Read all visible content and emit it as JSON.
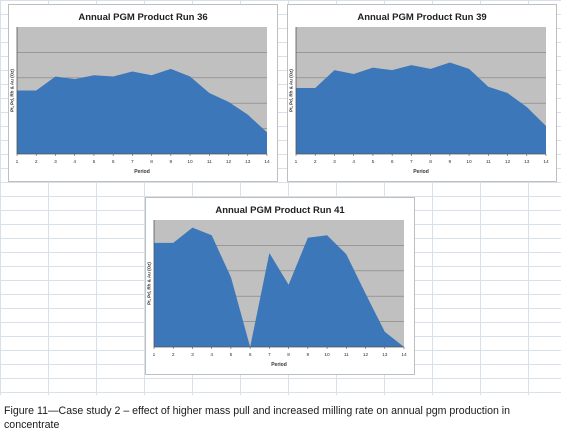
{
  "caption": "Figure 11—Case study 2 – effect of higher mass pull and increased milling rate on annual pgm production in concentrate",
  "colors": {
    "fill": "#3b77b9",
    "plot_bg": "#c0c0c0",
    "grid": "#7f7f7f"
  },
  "chart_data": [
    {
      "type": "area",
      "title": "Annual PGM Product Run 36",
      "xlabel": "Period",
      "ylabel": "Pt, Pd, Rh & Au (Oz)",
      "categories": [
        "1",
        "2",
        "3",
        "4",
        "5",
        "6",
        "7",
        "8",
        "9",
        "10",
        "11",
        "12",
        "13",
        "14"
      ],
      "values": [
        50,
        50,
        61,
        59,
        62,
        61,
        65,
        62,
        67,
        61,
        48,
        41,
        31,
        17
      ],
      "ylim": [
        0,
        100
      ],
      "grid": true,
      "legend": "none"
    },
    {
      "type": "area",
      "title": "Annual PGM Product Run 39",
      "xlabel": "Period",
      "ylabel": "Pt, Pd, Rh & Au (Oz)",
      "categories": [
        "1",
        "2",
        "3",
        "4",
        "5",
        "6",
        "7",
        "8",
        "9",
        "10",
        "11",
        "12",
        "13",
        "14"
      ],
      "values": [
        52,
        52,
        66,
        63,
        68,
        66,
        70,
        67,
        72,
        67,
        53,
        48,
        37,
        22
      ],
      "ylim": [
        0,
        100
      ],
      "grid": true,
      "legend": "none"
    },
    {
      "type": "area",
      "title": "Annual PGM Product Run 41",
      "xlabel": "Period",
      "ylabel": "Pt, Pd, Rh & Au (Oz)",
      "categories": [
        "1",
        "2",
        "3",
        "4",
        "5",
        "6",
        "7",
        "8",
        "9",
        "10",
        "11",
        "12",
        "13",
        "14"
      ],
      "values": [
        82,
        82,
        94,
        88,
        55,
        0,
        74,
        49,
        86,
        88,
        73,
        42,
        12,
        0
      ],
      "ylim": [
        0,
        100
      ],
      "grid": true,
      "legend": "none"
    }
  ]
}
